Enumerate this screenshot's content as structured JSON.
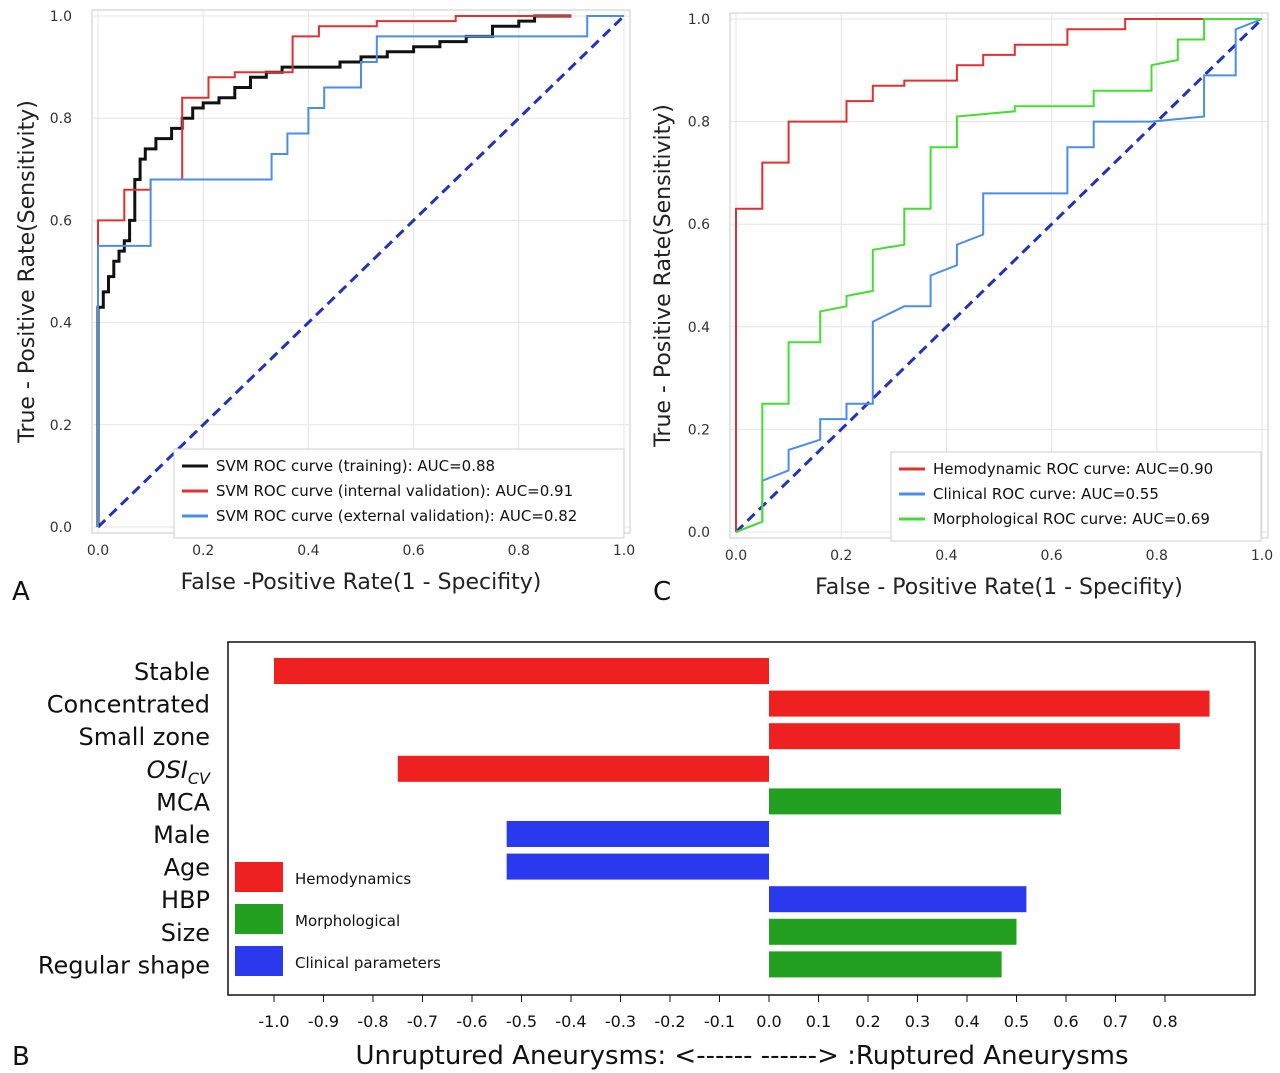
{
  "panels": {
    "a": "A",
    "b": "B",
    "c": "C"
  },
  "chart_data": [
    {
      "id": "A",
      "type": "line",
      "xlabel": "False -Positive Rate(1 - Specifity)",
      "ylabel": "True - Positive Rate(Sensitivity)",
      "xlim": [
        0,
        1
      ],
      "ylim": [
        0,
        1
      ],
      "xticks": [
        "0.0",
        "0.2",
        "0.4",
        "0.6",
        "0.8",
        "1.0"
      ],
      "yticks": [
        "0.0",
        "0.2",
        "0.4",
        "0.6",
        "0.8",
        "1.0"
      ],
      "grid": true,
      "legend_position": "bottom-right",
      "diagonal": {
        "color": "#2233bb",
        "style": "dashed"
      },
      "series": [
        {
          "name": "SVM ROC curve (training): AUC=0.88",
          "color": "#111111",
          "x": [
            0,
            0,
            0.01,
            0.01,
            0.02,
            0.02,
            0.03,
            0.03,
            0.04,
            0.04,
            0.05,
            0.05,
            0.06,
            0.06,
            0.07,
            0.07,
            0.08,
            0.08,
            0.09,
            0.09,
            0.11,
            0.11,
            0.14,
            0.14,
            0.16,
            0.16,
            0.18,
            0.18,
            0.2,
            0.2,
            0.23,
            0.23,
            0.26,
            0.26,
            0.29,
            0.29,
            0.32,
            0.32,
            0.35,
            0.35,
            0.38,
            0.38,
            0.42,
            0.42,
            0.46,
            0.46,
            0.5,
            0.5,
            0.55,
            0.55,
            0.6,
            0.6,
            0.65,
            0.65,
            0.7,
            0.7,
            0.75,
            0.75,
            0.8,
            0.8,
            0.83,
            0.83,
            0.9
          ],
          "y": [
            0,
            0.43,
            0.43,
            0.46,
            0.46,
            0.49,
            0.49,
            0.52,
            0.52,
            0.54,
            0.54,
            0.56,
            0.56,
            0.6,
            0.6,
            0.68,
            0.68,
            0.72,
            0.72,
            0.74,
            0.74,
            0.76,
            0.76,
            0.78,
            0.78,
            0.8,
            0.8,
            0.82,
            0.82,
            0.83,
            0.83,
            0.84,
            0.84,
            0.86,
            0.86,
            0.88,
            0.88,
            0.89,
            0.89,
            0.9,
            0.9,
            0.9,
            0.9,
            0.9,
            0.9,
            0.91,
            0.91,
            0.92,
            0.92,
            0.93,
            0.93,
            0.94,
            0.94,
            0.95,
            0.95,
            0.96,
            0.96,
            0.98,
            0.98,
            0.99,
            0.99,
            1.0,
            1.0
          ]
        },
        {
          "name": "SVM ROC curve (internal validation): AUC=0.91",
          "color": "#e03030",
          "x": [
            0,
            0,
            0.05,
            0.05,
            0.1,
            0.1,
            0.16,
            0.16,
            0.21,
            0.21,
            0.26,
            0.26,
            0.37,
            0.37,
            0.42,
            0.42,
            0.53,
            0.53,
            0.68,
            0.68,
            0.9
          ],
          "y": [
            0,
            0.6,
            0.6,
            0.66,
            0.66,
            0.68,
            0.68,
            0.84,
            0.84,
            0.88,
            0.88,
            0.89,
            0.89,
            0.96,
            0.96,
            0.98,
            0.98,
            0.99,
            0.99,
            1.0,
            1.0
          ]
        },
        {
          "name": "SVM ROC curve (external validation): AUC=0.82",
          "color": "#4a8ee8",
          "x": [
            0,
            0,
            0.05,
            0.05,
            0.1,
            0.1,
            0.33,
            0.33,
            0.36,
            0.36,
            0.4,
            0.4,
            0.43,
            0.43,
            0.47,
            0.47,
            0.5,
            0.5,
            0.53,
            0.53,
            0.93,
            0.93,
            1.0
          ],
          "y": [
            0,
            0.55,
            0.55,
            0.55,
            0.55,
            0.68,
            0.68,
            0.73,
            0.73,
            0.77,
            0.77,
            0.82,
            0.82,
            0.86,
            0.86,
            0.86,
            0.86,
            0.91,
            0.91,
            0.96,
            0.96,
            1.0,
            1.0
          ]
        }
      ]
    },
    {
      "id": "C",
      "type": "line",
      "xlabel": "False - Positive Rate(1 - Specifity)",
      "ylabel": "True - Positive Rate(Sensitivity)",
      "xlim": [
        0,
        1
      ],
      "ylim": [
        0,
        1
      ],
      "xticks": [
        "0.0",
        "0.2",
        "0.4",
        "0.6",
        "0.8",
        "1.0"
      ],
      "yticks": [
        "0.0",
        "0.2",
        "0.4",
        "0.6",
        "0.8",
        "1.0"
      ],
      "grid": true,
      "legend_position": "bottom-right",
      "diagonal": {
        "color": "#2233bb",
        "style": "dashed"
      },
      "series": [
        {
          "name": "Hemodynamic ROC curve: AUC=0.90",
          "color": "#e03030",
          "x": [
            0,
            0,
            0.05,
            0.05,
            0.1,
            0.1,
            0.21,
            0.21,
            0.26,
            0.26,
            0.32,
            0.32,
            0.42,
            0.42,
            0.47,
            0.47,
            0.53,
            0.53,
            0.63,
            0.63,
            0.74,
            0.74,
            1.0
          ],
          "y": [
            0,
            0.63,
            0.63,
            0.72,
            0.72,
            0.8,
            0.8,
            0.84,
            0.84,
            0.87,
            0.87,
            0.88,
            0.88,
            0.91,
            0.91,
            0.93,
            0.93,
            0.95,
            0.95,
            0.98,
            0.98,
            1.0,
            1.0
          ]
        },
        {
          "name": "Clinical ROC curve: AUC=0.55",
          "color": "#4a8ee8",
          "x": [
            0,
            0.05,
            0.05,
            0.1,
            0.1,
            0.16,
            0.16,
            0.21,
            0.21,
            0.26,
            0.26,
            0.32,
            0.32,
            0.37,
            0.37,
            0.42,
            0.42,
            0.47,
            0.47,
            0.63,
            0.63,
            0.68,
            0.68,
            0.79,
            0.79,
            0.89,
            0.89,
            0.95,
            0.95,
            1.0
          ],
          "y": [
            0,
            0.02,
            0.1,
            0.12,
            0.16,
            0.18,
            0.22,
            0.22,
            0.25,
            0.25,
            0.41,
            0.44,
            0.44,
            0.44,
            0.5,
            0.52,
            0.56,
            0.58,
            0.66,
            0.66,
            0.75,
            0.75,
            0.8,
            0.8,
            0.8,
            0.81,
            0.89,
            0.89,
            0.98,
            1.0
          ]
        },
        {
          "name": "Morphological ROC curve: AUC=0.69",
          "color": "#44dd33",
          "x": [
            0,
            0.05,
            0.05,
            0.1,
            0.1,
            0.16,
            0.16,
            0.21,
            0.21,
            0.26,
            0.26,
            0.32,
            0.32,
            0.37,
            0.37,
            0.42,
            0.42,
            0.53,
            0.53,
            0.68,
            0.68,
            0.79,
            0.79,
            0.84,
            0.84,
            0.89,
            0.89,
            1.0
          ],
          "y": [
            0,
            0.02,
            0.25,
            0.25,
            0.37,
            0.37,
            0.43,
            0.44,
            0.46,
            0.47,
            0.55,
            0.56,
            0.63,
            0.63,
            0.75,
            0.75,
            0.81,
            0.82,
            0.83,
            0.83,
            0.86,
            0.86,
            0.91,
            0.92,
            0.96,
            0.96,
            1.0,
            1.0
          ]
        }
      ]
    },
    {
      "id": "B",
      "type": "bar",
      "orientation": "horizontal",
      "xlabel": "Unruptured Aneurysms: <------    ------> :Ruptured Aneurysms",
      "xlim": [
        -1.05,
        0.92
      ],
      "xticks": [
        "-1.0",
        "-0.9",
        "-0.8",
        "-0.7",
        "-0.6",
        "-0.5",
        "-0.4",
        "-0.3",
        "-0.2",
        "-0.1",
        "0.0",
        "0.1",
        "0.2",
        "0.3",
        "0.4",
        "0.5",
        "0.6",
        "0.7",
        "0.8"
      ],
      "tick_values": [
        -1.0,
        -0.9,
        -0.8,
        -0.7,
        -0.6,
        -0.5,
        -0.4,
        -0.3,
        -0.2,
        -0.1,
        0.0,
        0.1,
        0.2,
        0.3,
        0.4,
        0.5,
        0.6,
        0.7,
        0.8
      ],
      "legend_position": "bottom-left",
      "groups": [
        {
          "name": "Hemodynamics",
          "color": "#ee2020"
        },
        {
          "name": "Morphological",
          "color": "#22a020"
        },
        {
          "name": "Clinical parameters",
          "color": "#2b39ee"
        }
      ],
      "bars": [
        {
          "label": "Stable",
          "value": -1.0,
          "group": "Hemodynamics"
        },
        {
          "label": "Concentrated",
          "value": 0.89,
          "group": "Hemodynamics"
        },
        {
          "label": "Small zone",
          "value": 0.83,
          "group": "Hemodynamics"
        },
        {
          "label": "OSI",
          "label_sub": "CV",
          "value": -0.75,
          "group": "Hemodynamics"
        },
        {
          "label": "MCA",
          "value": 0.59,
          "group": "Morphological"
        },
        {
          "label": "Male",
          "value": -0.53,
          "group": "Clinical parameters"
        },
        {
          "label": "Age",
          "value": -0.53,
          "group": "Clinical parameters"
        },
        {
          "label": "HBP",
          "value": 0.52,
          "group": "Clinical parameters"
        },
        {
          "label": "Size",
          "value": 0.5,
          "group": "Morphological"
        },
        {
          "label": "Regular shape",
          "value": 0.47,
          "group": "Morphological"
        }
      ]
    }
  ]
}
